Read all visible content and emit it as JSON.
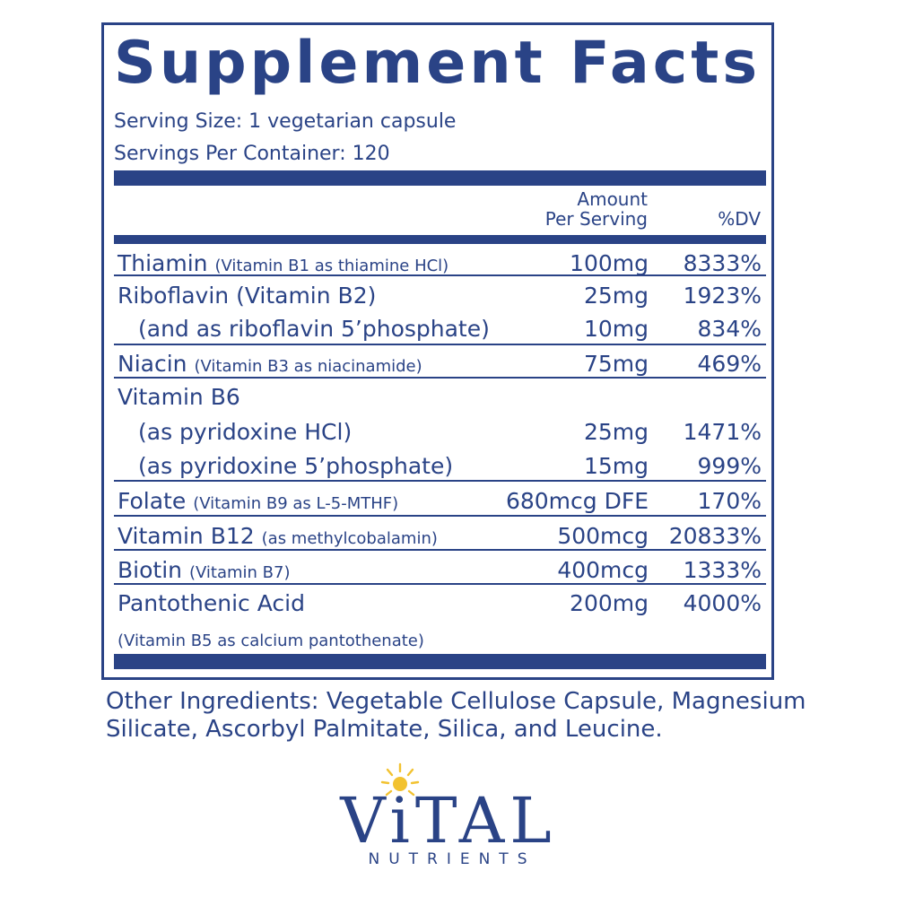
{
  "label": {
    "title": "Supplement Facts",
    "serving_size": "Serving Size: 1 vegetarian capsule",
    "servings_per_container": "Servings Per Container: 120",
    "columns": {
      "amount_line1": "Amount",
      "amount_line2": "Per Serving",
      "dv": "%DV"
    },
    "rows": [
      {
        "name": "Thiamin",
        "qualifier": "(Vitamin B1 as thiamine HCl)",
        "amount": "100mg",
        "dv": "8333%"
      },
      {
        "name": "Riboflavin (Vitamin B2)",
        "qualifier": "",
        "amount": "25mg",
        "dv": "1923%"
      },
      {
        "name": "(and as riboflavin 5’phosphate)",
        "qualifier": "",
        "amount": "10mg",
        "dv": "834%"
      },
      {
        "name": "Niacin",
        "qualifier": "(Vitamin B3 as niacinamide)",
        "amount": "75mg",
        "dv": "469%"
      },
      {
        "name": "Vitamin B6",
        "qualifier": "",
        "amount": "",
        "dv": ""
      },
      {
        "name": "(as pyridoxine HCl)",
        "qualifier": "",
        "amount": "25mg",
        "dv": "1471%"
      },
      {
        "name": "(as pyridoxine 5’phosphate)",
        "qualifier": "",
        "amount": "15mg",
        "dv": "999%"
      },
      {
        "name": "Folate",
        "qualifier": "(Vitamin B9 as L-5-MTHF)",
        "amount": "680mcg DFE",
        "dv": "170%"
      },
      {
        "name": "Vitamin B12",
        "qualifier": "(as methylcobalamin)",
        "amount": "500mcg",
        "dv": "20833%"
      },
      {
        "name": "Biotin",
        "qualifier": "(Vitamin B7)",
        "amount": "400mcg",
        "dv": "1333%"
      },
      {
        "name": "Pantothenic Acid",
        "qualifier": "",
        "amount": "200mg",
        "dv": "4000%"
      }
    ],
    "pantothenic_note": "(Vitamin B5 as calcium pantothenate)"
  },
  "other_ingredients": "Other Ingredients: Vegetable Cellulose Capsule, Magnesium Silicate, Ascorbyl Palmitate, Silica, and Leucine.",
  "brand": {
    "name": "ViTAL",
    "tagline": "NUTRIENTS",
    "sun_icon": "sun-icon",
    "colors": {
      "primary": "#2a4386",
      "sun": "#f2c230"
    }
  }
}
